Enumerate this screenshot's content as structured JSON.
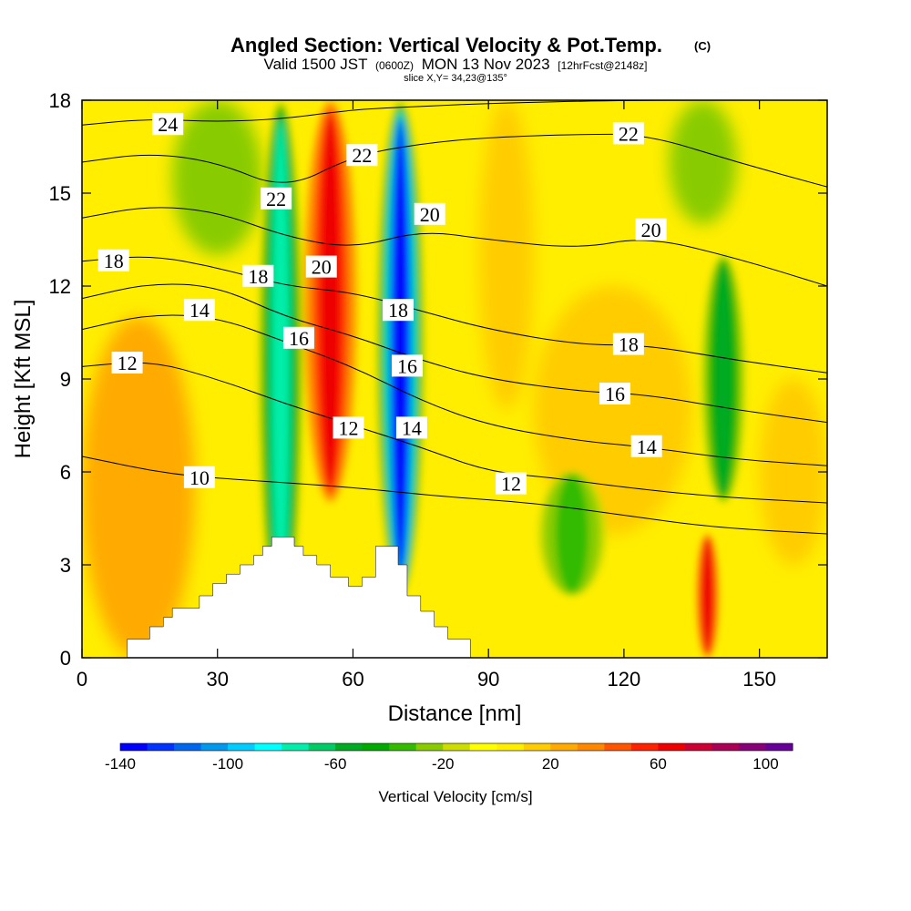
{
  "chart_data": {
    "type": "heatmap",
    "title": "Angled Section: Vertical Velocity & Pot.Temp.",
    "title_mark": "(C)",
    "subtitle_prefix": "Valid 1500 JST",
    "subtitle_utc": "(0600Z)",
    "subtitle_date": "MON 13 Nov 2023",
    "subtitle_fcst": "[12hrFcst@2148z]",
    "slice_label": "slice X,Y= 34,23@135°",
    "xlabel": "Distance [nm]",
    "ylabel": "Height [Kft MSL]",
    "xlim": [
      0,
      165
    ],
    "ylim": [
      0,
      18
    ],
    "x_ticks": [
      0,
      30,
      60,
      90,
      120,
      150
    ],
    "y_ticks": [
      0,
      3,
      6,
      9,
      12,
      15,
      18
    ],
    "colorbar": {
      "label": "Vertical Velocity [cm/s]",
      "tick_labels": [
        -140,
        -100,
        -60,
        -20,
        20,
        60,
        100
      ],
      "range": [
        -140,
        110
      ],
      "step": 10,
      "colors": [
        "#0000ff",
        "#0033ff",
        "#0066ee",
        "#0099ee",
        "#00ccff",
        "#00ffff",
        "#00eeaa",
        "#00cc66",
        "#00aa22",
        "#00aa00",
        "#33bb00",
        "#88cc00",
        "#ccdd00",
        "#ffff00",
        "#ffee00",
        "#ffcc00",
        "#ffaa00",
        "#ff8800",
        "#ff5500",
        "#ff2200",
        "#ee0000",
        "#cc0033",
        "#aa0055",
        "#880077",
        "#660099"
      ]
    },
    "velocity_features": [
      {
        "name": "downdraft-band-1",
        "x": [
          40,
          48
        ],
        "y": [
          1,
          18
        ],
        "min_value": -80
      },
      {
        "name": "updraft-band-1",
        "x": [
          50,
          60
        ],
        "y": [
          5,
          18
        ],
        "max_value": 60
      },
      {
        "name": "downdraft-band-2",
        "x": [
          66,
          75
        ],
        "y": [
          2,
          18
        ],
        "min_value": -140
      },
      {
        "name": "updraft-band-2",
        "x": [
          137,
          140
        ],
        "y": [
          0,
          4
        ],
        "max_value": 60
      },
      {
        "name": "downdraft-band-3",
        "x": [
          138,
          146
        ],
        "y": [
          5,
          13
        ],
        "min_value": -60
      },
      {
        "name": "downdraft-patch",
        "x": [
          102,
          115
        ],
        "y": [
          2,
          6
        ],
        "min_value": -40
      }
    ],
    "isentrope_labels": [
      {
        "text": "24",
        "x": 19,
        "y": 17.2
      },
      {
        "text": "22",
        "x": 43,
        "y": 14.8
      },
      {
        "text": "22",
        "x": 62,
        "y": 16.2
      },
      {
        "text": "22",
        "x": 121,
        "y": 16.9
      },
      {
        "text": "20",
        "x": 53,
        "y": 12.6
      },
      {
        "text": "20",
        "x": 77,
        "y": 14.3
      },
      {
        "text": "20",
        "x": 126,
        "y": 13.8
      },
      {
        "text": "18",
        "x": 7,
        "y": 12.8
      },
      {
        "text": "18",
        "x": 39,
        "y": 12.3
      },
      {
        "text": "18",
        "x": 70,
        "y": 11.2
      },
      {
        "text": "18",
        "x": 121,
        "y": 10.1
      },
      {
        "text": "16",
        "x": 48,
        "y": 10.3
      },
      {
        "text": "16",
        "x": 72,
        "y": 9.4
      },
      {
        "text": "16",
        "x": 118,
        "y": 8.5
      },
      {
        "text": "14",
        "x": 26,
        "y": 11.2
      },
      {
        "text": "14",
        "x": 73,
        "y": 7.4
      },
      {
        "text": "14",
        "x": 125,
        "y": 6.8
      },
      {
        "text": "12",
        "x": 10,
        "y": 9.5
      },
      {
        "text": "12",
        "x": 59,
        "y": 7.4
      },
      {
        "text": "12",
        "x": 95,
        "y": 5.6
      },
      {
        "text": "10",
        "x": 26,
        "y": 5.8
      }
    ],
    "isentropes": [
      {
        "value": 10,
        "points": [
          [
            0,
            6.5
          ],
          [
            20,
            5.9
          ],
          [
            40,
            5.7
          ],
          [
            60,
            5.5
          ],
          [
            80,
            5.2
          ],
          [
            100,
            5.0
          ],
          [
            120,
            4.6
          ],
          [
            140,
            4.2
          ],
          [
            165,
            4.0
          ]
        ]
      },
      {
        "value": 12,
        "points": [
          [
            0,
            9.4
          ],
          [
            15,
            9.6
          ],
          [
            30,
            9.0
          ],
          [
            45,
            8.2
          ],
          [
            60,
            7.5
          ],
          [
            75,
            6.8
          ],
          [
            90,
            6.0
          ],
          [
            105,
            5.8
          ],
          [
            120,
            5.5
          ],
          [
            140,
            5.2
          ],
          [
            165,
            5.0
          ]
        ]
      },
      {
        "value": 14,
        "points": [
          [
            0,
            10.6
          ],
          [
            15,
            11.1
          ],
          [
            30,
            11.0
          ],
          [
            45,
            10.2
          ],
          [
            60,
            9.4
          ],
          [
            75,
            8.3
          ],
          [
            90,
            7.5
          ],
          [
            110,
            7.0
          ],
          [
            125,
            6.8
          ],
          [
            145,
            6.4
          ],
          [
            165,
            6.2
          ]
        ]
      },
      {
        "value": 16,
        "points": [
          [
            0,
            11.6
          ],
          [
            15,
            12.1
          ],
          [
            30,
            12.0
          ],
          [
            45,
            11.0
          ],
          [
            60,
            10.4
          ],
          [
            75,
            9.6
          ],
          [
            90,
            9.0
          ],
          [
            110,
            8.6
          ],
          [
            125,
            8.5
          ],
          [
            145,
            8.0
          ],
          [
            165,
            7.6
          ]
        ]
      },
      {
        "value": 18,
        "points": [
          [
            0,
            12.8
          ],
          [
            15,
            13.0
          ],
          [
            30,
            12.6
          ],
          [
            45,
            12.0
          ],
          [
            60,
            11.8
          ],
          [
            75,
            11.2
          ],
          [
            90,
            10.6
          ],
          [
            110,
            10.1
          ],
          [
            125,
            10.1
          ],
          [
            145,
            9.6
          ],
          [
            165,
            9.2
          ]
        ]
      },
      {
        "value": 20,
        "points": [
          [
            0,
            14.2
          ],
          [
            15,
            14.6
          ],
          [
            30,
            14.4
          ],
          [
            45,
            13.6
          ],
          [
            60,
            13.2
          ],
          [
            75,
            13.8
          ],
          [
            90,
            13.5
          ],
          [
            110,
            13.2
          ],
          [
            125,
            13.6
          ],
          [
            145,
            12.9
          ],
          [
            165,
            12.0
          ]
        ]
      },
      {
        "value": 22,
        "points": [
          [
            0,
            16.0
          ],
          [
            15,
            16.3
          ],
          [
            30,
            16.0
          ],
          [
            45,
            15.1
          ],
          [
            60,
            16.2
          ],
          [
            75,
            16.6
          ],
          [
            90,
            16.8
          ],
          [
            110,
            16.9
          ],
          [
            125,
            16.9
          ],
          [
            145,
            16.0
          ],
          [
            165,
            15.2
          ]
        ]
      },
      {
        "value": 24,
        "points": [
          [
            0,
            17.2
          ],
          [
            15,
            17.4
          ],
          [
            30,
            17.3
          ],
          [
            45,
            17.4
          ],
          [
            60,
            17.7
          ],
          [
            75,
            17.8
          ],
          [
            90,
            17.9
          ],
          [
            120,
            18.0
          ],
          [
            165,
            18.0
          ]
        ]
      }
    ],
    "terrain": [
      [
        0,
        0
      ],
      [
        10,
        0
      ],
      [
        10,
        0.6
      ],
      [
        15,
        0.6
      ],
      [
        15,
        1.0
      ],
      [
        18,
        1.0
      ],
      [
        18,
        1.3
      ],
      [
        20,
        1.3
      ],
      [
        20,
        1.6
      ],
      [
        26,
        1.6
      ],
      [
        26,
        2.0
      ],
      [
        29,
        2.0
      ],
      [
        29,
        2.4
      ],
      [
        32,
        2.4
      ],
      [
        32,
        2.7
      ],
      [
        35,
        2.7
      ],
      [
        35,
        3.0
      ],
      [
        38,
        3.0
      ],
      [
        38,
        3.3
      ],
      [
        40,
        3.3
      ],
      [
        40,
        3.6
      ],
      [
        42,
        3.6
      ],
      [
        42,
        3.9
      ],
      [
        47,
        3.9
      ],
      [
        47,
        3.6
      ],
      [
        49,
        3.6
      ],
      [
        49,
        3.3
      ],
      [
        52,
        3.3
      ],
      [
        52,
        3.0
      ],
      [
        55,
        3.0
      ],
      [
        55,
        2.6
      ],
      [
        59,
        2.6
      ],
      [
        59,
        2.3
      ],
      [
        62,
        2.3
      ],
      [
        62,
        2.6
      ],
      [
        65,
        2.6
      ],
      [
        65,
        3.6
      ],
      [
        70,
        3.6
      ],
      [
        70,
        3.0
      ],
      [
        72,
        3.0
      ],
      [
        72,
        2.0
      ],
      [
        75,
        2.0
      ],
      [
        75,
        1.5
      ],
      [
        78,
        1.5
      ],
      [
        78,
        1.0
      ],
      [
        81,
        1.0
      ],
      [
        81,
        0.6
      ],
      [
        86,
        0.6
      ],
      [
        86,
        0
      ],
      [
        165,
        0
      ]
    ]
  }
}
